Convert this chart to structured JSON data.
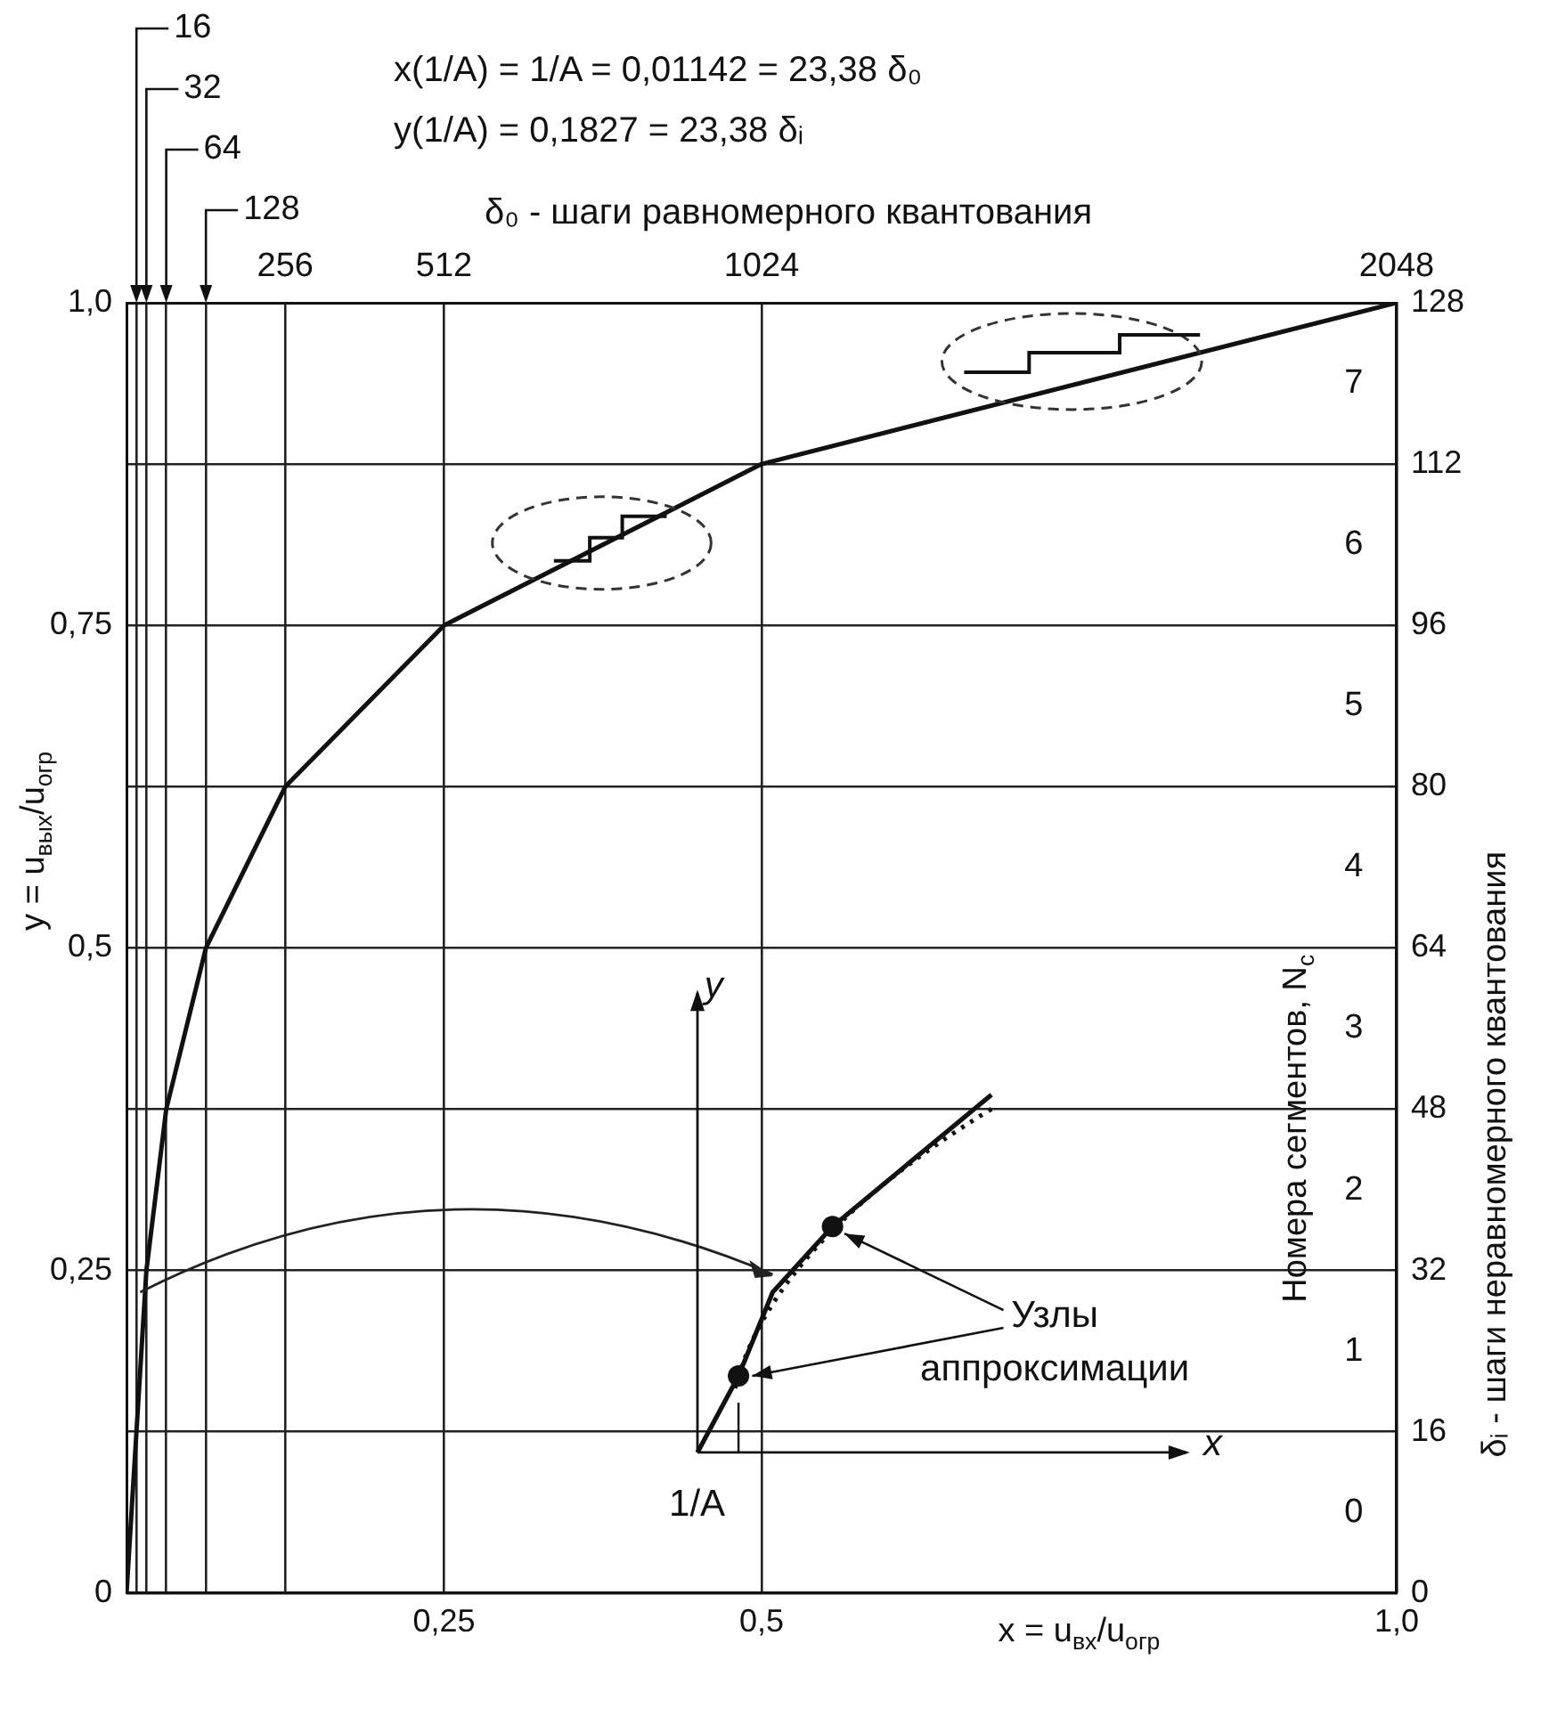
{
  "chart_data": {
    "type": "line",
    "x": [
      0,
      0.0078125,
      0.015625,
      0.03125,
      0.0625,
      0.125,
      0.25,
      0.5,
      1
    ],
    "series": [
      {
        "color": "#111111",
        "values": [
          0,
          0.125,
          0.25,
          0.375,
          0.5,
          0.625,
          0.75,
          0.875,
          1
        ]
      }
    ],
    "xlim": [
      0,
      1
    ],
    "xticks": [
      {
        "value": 0.25,
        "label": "0,25"
      },
      {
        "value": 0.5,
        "label": "0,5"
      },
      {
        "value": 1,
        "label": "1,0"
      }
    ],
    "ylim": [
      0,
      1
    ],
    "yticks": [
      {
        "value": 0,
        "label": "0"
      },
      {
        "value": 0.25,
        "label": "0,25"
      },
      {
        "value": 0.5,
        "label": "0,5"
      },
      {
        "value": 0.75,
        "label": "0,75"
      },
      {
        "value": 1,
        "label": "1,0"
      }
    ],
    "x2lim": [
      0,
      2048
    ],
    "x2ticks": [
      {
        "value": 16,
        "label": null
      },
      {
        "value": 32,
        "label": null
      },
      {
        "value": 64,
        "label": null
      },
      {
        "value": 128,
        "label": null
      },
      256,
      512,
      1024,
      2048
    ],
    "x2label": "δ₀ - шаги равномерного квантования",
    "y2lim": [
      0,
      128
    ],
    "y2ticks": [
      0,
      16,
      32,
      48,
      64,
      80,
      96,
      112,
      128
    ],
    "y2label": "δᵢ - шаги неравномерного квантования",
    "y3lim": [
      0,
      8
    ],
    "y3ticks": [
      {
        "value": 0.5,
        "label": "0"
      },
      {
        "value": 1.5,
        "label": "1"
      },
      {
        "value": 2.5,
        "label": "2"
      },
      {
        "value": 3.5,
        "label": "3"
      },
      {
        "value": 4.5,
        "label": "4"
      },
      {
        "value": 5.5,
        "label": "5"
      },
      {
        "value": 6.5,
        "label": "6"
      },
      {
        "value": 7.5,
        "label": "7"
      }
    ],
    "y3label": "Номера сегментов, N$_{с}$",
    "xlabel": "x = u$_{вх}$/u$_{огр}$",
    "ylabel": "y = u$_{вых}$/u$_{огр}$",
    "grid": true,
    "marker": "none",
    "line_style": "solid",
    "annotations": [
      "x(1/A) = 1/A = 0,01142 = 23,38 δ₀",
      "y(1/A) = 0,1827 = 23,38 δᵢ",
      "16",
      "32",
      "64",
      "128",
      "y",
      "x",
      "1/A",
      "Узлы аппроксимации"
    ]
  }
}
